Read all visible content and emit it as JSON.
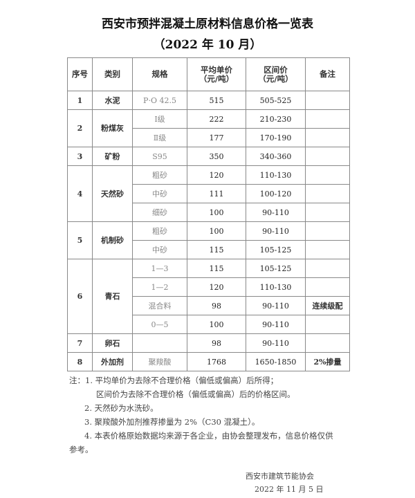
{
  "title": "西安市预拌混凝土原材料信息价格一览表",
  "subtitle": "（2022 年 10 月）",
  "headers": [
    "序号",
    "类别",
    "规格",
    "平均单价（元/吨）",
    "区间价（元/吨）",
    "备注"
  ],
  "header_lines": {
    "avg_l1": "平均单价",
    "avg_l2": "（元/吨）",
    "range_l1": "区间价",
    "range_l2": "（元/吨）"
  },
  "rows": [
    {
      "no": "1",
      "cat": "水泥",
      "spec": "P·O 42.5",
      "avg": "515",
      "range": "505-525",
      "note": ""
    },
    {
      "no": "2",
      "cat": "粉煤灰",
      "spec": "Ⅰ级",
      "avg": "222",
      "range": "210-230",
      "note": ""
    },
    {
      "spec": "Ⅱ级",
      "avg": "177",
      "range": "170-190",
      "note": ""
    },
    {
      "no": "3",
      "cat": "矿粉",
      "spec": "S95",
      "avg": "350",
      "range": "340-360",
      "note": ""
    },
    {
      "no": "4",
      "cat": "天然砂",
      "spec": "粗砂",
      "avg": "120",
      "range": "110-130",
      "note": ""
    },
    {
      "spec": "中砂",
      "avg": "111",
      "range": "100-120",
      "note": ""
    },
    {
      "spec": "细砂",
      "avg": "100",
      "range": "90-110",
      "note": ""
    },
    {
      "no": "5",
      "cat": "机制砂",
      "spec": "粗砂",
      "avg": "100",
      "range": "90-110",
      "note": ""
    },
    {
      "spec": "中砂",
      "avg": "115",
      "range": "105-125",
      "note": ""
    },
    {
      "no": "6",
      "cat": "青石",
      "spec": "1—3",
      "avg": "115",
      "range": "105-125",
      "note": ""
    },
    {
      "spec": "1—2",
      "avg": "120",
      "range": "110-130",
      "note": ""
    },
    {
      "spec": "混合料",
      "avg": "98",
      "range": "90-110",
      "note": "连续级配"
    },
    {
      "spec": "0—5",
      "avg": "100",
      "range": "90-110",
      "note": ""
    },
    {
      "no": "7",
      "cat": "卵石",
      "spec": "",
      "avg": "98",
      "range": "90-110",
      "note": ""
    },
    {
      "no": "8",
      "cat": "外加剂",
      "spec": "聚羧酸",
      "avg": "1768",
      "range": "1650-1850",
      "note": "2%掺量"
    }
  ],
  "notes": [
    "注：1. 平均单价为去除不合理价格（偏低或偏高）后所得；",
    "区间价为去除不合理价格（偏低或偏高）后的价格区间。",
    "2. 天然砂为水洗砂。",
    "3. 聚羧酸外加剂推荐掺量为 2%（C30 混凝土）。",
    "4. 本表价格原始数据均来源于各企业，由协会整理发布，信息价格仅供",
    "参考。"
  ],
  "signature": {
    "org": "西安市建筑节能协会",
    "date": "2022 年 11 月 5 日"
  }
}
